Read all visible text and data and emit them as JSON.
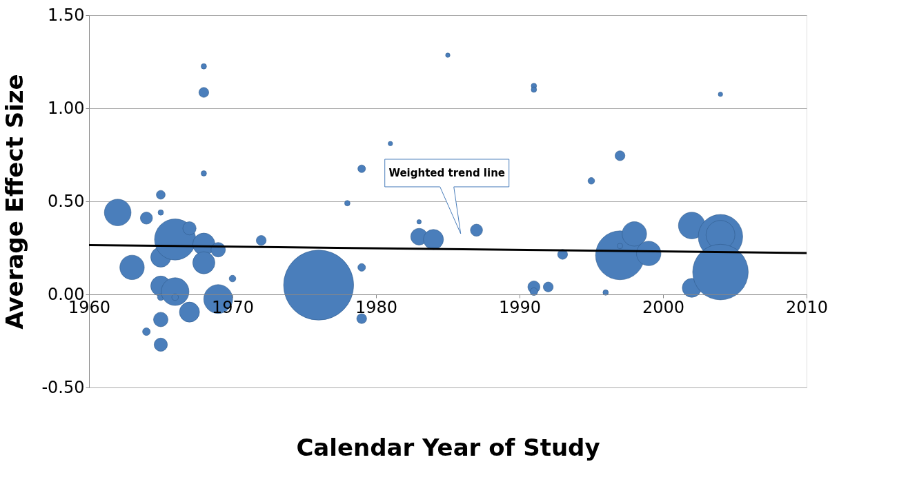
{
  "chart_data": {
    "type": "bubble",
    "xlabel": "Calendar Year of Study",
    "ylabel": "Average Effect Size",
    "xlim": [
      1960,
      2010
    ],
    "xticks": [
      1960,
      1970,
      1980,
      1990,
      2000,
      2010
    ],
    "ylim": [
      -0.5,
      1.5
    ],
    "yticks": [
      {
        "value": -0.5,
        "label": "-0.50"
      },
      {
        "value": 0,
        "label": "0.00"
      },
      {
        "value": 0.5,
        "label": "0.50"
      },
      {
        "value": 1,
        "label": "1.00"
      },
      {
        "value": 1.5,
        "label": "1.50"
      }
    ],
    "grid": "y",
    "legend": false,
    "series": [
      {
        "color": "#4a7ebb",
        "x": [
          1962,
          1963,
          1964,
          1964,
          1965,
          1965,
          1965,
          1965,
          1965,
          1965,
          1965,
          1966,
          1966,
          1966,
          1967,
          1968,
          1968,
          1967,
          1969,
          1969,
          1970,
          1972,
          1968,
          1968,
          1968,
          1976,
          1979,
          1979,
          1979,
          1978,
          1981,
          1983,
          1983,
          1984,
          1985,
          1987,
          1991,
          1991,
          1991,
          1991,
          1992,
          1993,
          1995,
          1996,
          1997,
          1997,
          1997,
          1998,
          1999,
          2002,
          2002,
          2004,
          2004,
          2004,
          2004
        ],
        "values": [
          0.44,
          0.145,
          0.41,
          -0.2,
          0.535,
          0.44,
          0.2,
          0.045,
          -0.015,
          -0.135,
          -0.27,
          0.015,
          -0.015,
          0.295,
          0.355,
          0.27,
          0.17,
          -0.095,
          0.24,
          -0.025,
          0.085,
          0.29,
          1.225,
          1.085,
          0.65,
          0.05,
          -0.13,
          0.145,
          0.675,
          0.49,
          0.81,
          0.39,
          0.31,
          0.295,
          1.285,
          0.345,
          1.12,
          1.1,
          0.04,
          0.015,
          0.04,
          0.215,
          0.61,
          0.01,
          0.745,
          0.21,
          0.26,
          0.325,
          0.22,
          0.37,
          0.035,
          0.31,
          0.32,
          0.12,
          1.075
        ],
        "sizes": [
          0.145,
          0.122,
          0.03,
          0.012,
          0.016,
          0.006,
          0.082,
          0.082,
          0.009,
          0.043,
          0.036,
          0.157,
          0.009,
          0.345,
          0.036,
          0.1,
          0.1,
          0.082,
          0.043,
          0.17,
          0.009,
          0.02,
          0.006,
          0.02,
          0.006,
          1,
          0.02,
          0.012,
          0.012,
          0.006,
          0.004,
          0.004,
          0.057,
          0.082,
          0.004,
          0.03,
          0.006,
          0.006,
          0.03,
          0.012,
          0.02,
          0.02,
          0.009,
          0.006,
          0.02,
          0.488,
          0.006,
          0.122,
          0.122,
          0.145,
          0.073,
          0.403,
          0.17,
          0.63,
          0.004
        ]
      },
      {
        "type": "line",
        "color": "#000000",
        "x": [
          1960,
          2010
        ],
        "values": [
          0.265,
          0.222
        ]
      }
    ],
    "annotations": [
      "Weighted trend line"
    ]
  }
}
